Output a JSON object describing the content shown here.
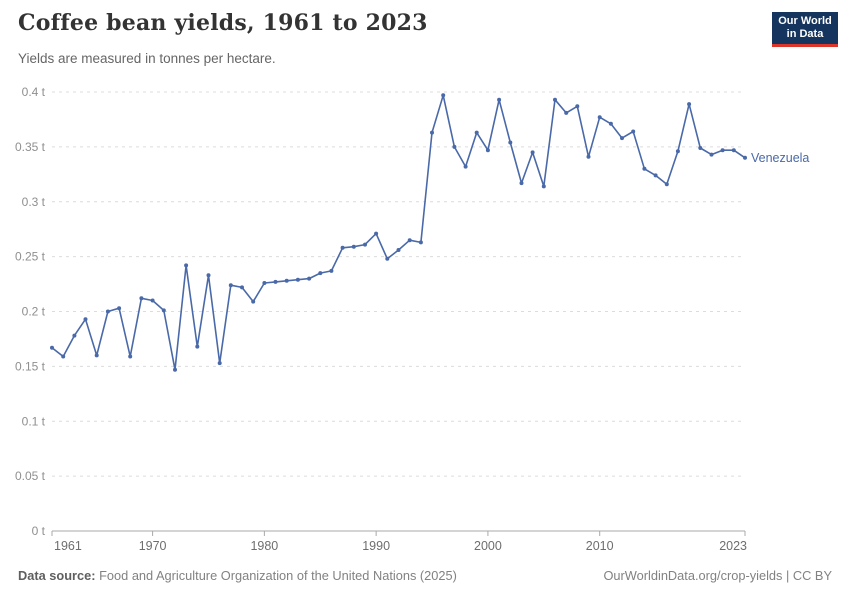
{
  "header": {
    "title": "Coffee bean yields, 1961 to 2023",
    "subtitle": "Yields are measured in tonnes per hectare.",
    "logo_line1": "Our World",
    "logo_line2": "in Data"
  },
  "chart_data": {
    "type": "line",
    "title": "Coffee bean yields, 1961 to 2023",
    "ylabel": "tonnes per hectare",
    "xlabel": "",
    "grid": "horizontal-dashed",
    "legend_position": "end-of-line",
    "xlim": [
      1961,
      2023
    ],
    "ylim": [
      0,
      0.4
    ],
    "x_ticks": [
      1961,
      1970,
      1980,
      1990,
      2000,
      2010,
      2023
    ],
    "y_ticks": [
      0,
      0.05,
      0.1,
      0.15,
      0.2,
      0.25,
      0.3,
      0.35,
      0.4
    ],
    "y_tick_suffix": " t",
    "series": [
      {
        "name": "Venezuela",
        "color": "#4a69a8",
        "x": [
          1961,
          1962,
          1963,
          1964,
          1965,
          1966,
          1967,
          1968,
          1969,
          1970,
          1971,
          1972,
          1973,
          1974,
          1975,
          1976,
          1977,
          1978,
          1979,
          1980,
          1981,
          1982,
          1983,
          1984,
          1985,
          1986,
          1987,
          1988,
          1989,
          1990,
          1991,
          1992,
          1993,
          1994,
          1995,
          1996,
          1997,
          1998,
          1999,
          2000,
          2001,
          2002,
          2003,
          2004,
          2005,
          2006,
          2007,
          2008,
          2009,
          2010,
          2011,
          2012,
          2013,
          2014,
          2015,
          2016,
          2017,
          2018,
          2019,
          2020,
          2021,
          2022,
          2023
        ],
        "values": [
          0.167,
          0.159,
          0.178,
          0.193,
          0.16,
          0.2,
          0.203,
          0.159,
          0.212,
          0.21,
          0.201,
          0.147,
          0.242,
          0.168,
          0.233,
          0.153,
          0.224,
          0.222,
          0.209,
          0.226,
          0.227,
          0.228,
          0.229,
          0.23,
          0.235,
          0.237,
          0.258,
          0.259,
          0.261,
          0.271,
          0.248,
          0.256,
          0.265,
          0.263,
          0.363,
          0.397,
          0.35,
          0.332,
          0.363,
          0.347,
          0.393,
          0.354,
          0.317,
          0.345,
          0.314,
          0.393,
          0.381,
          0.387,
          0.341,
          0.377,
          0.371,
          0.358,
          0.364,
          0.33,
          0.324,
          0.316,
          0.346,
          0.389,
          0.349,
          0.343,
          0.347,
          0.347,
          0.34
        ]
      }
    ]
  },
  "footer": {
    "source_label": "Data source:",
    "source_text": "Food and Agriculture Organization of the United Nations (2025)",
    "credit": "OurWorldinData.org/crop-yields | CC BY"
  },
  "colors": {
    "line": "#4a69a8",
    "logo_background": "#15355e",
    "logo_stripe": "#dc352a",
    "gridline": "#dcdcdc",
    "axis": "#a9a9a9"
  }
}
